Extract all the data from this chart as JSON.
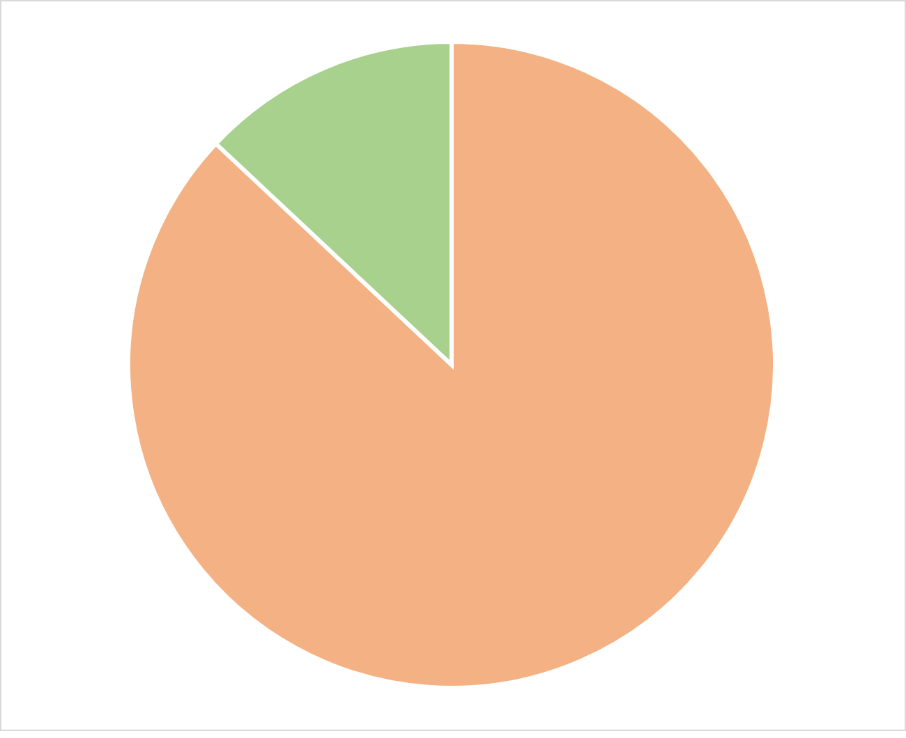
{
  "chart_data": {
    "type": "pie",
    "categories": [
      null,
      null
    ],
    "values": [
      87,
      13
    ],
    "colors": [
      "#f4b183",
      "#a9d18e"
    ]
  }
}
